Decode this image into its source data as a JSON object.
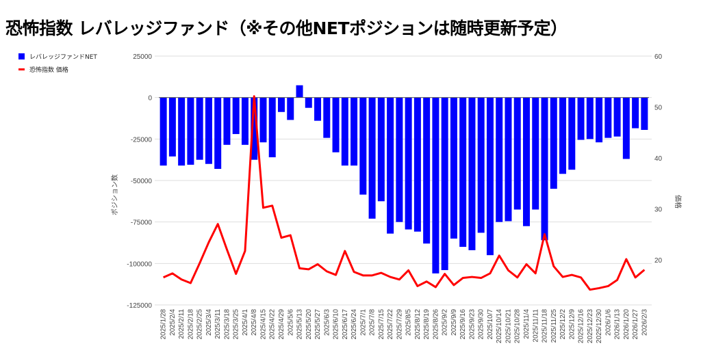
{
  "title": "恐怖指数 レバレッジファンド（※その他NETポジションは随時更新予定）",
  "chart_data": {
    "type": "bar+line",
    "title": "恐怖指数 レバレッジファンド（※その他NETポジションは随時更新予定）",
    "ylabel": "ポジション数",
    "y2label": "価格",
    "ylim": [
      -125000,
      25000
    ],
    "yticks": [
      25000,
      0,
      -25000,
      -50000,
      -75000,
      -100000,
      -125000
    ],
    "y2lim": [
      11.1,
      60
    ],
    "y2ticks": [
      60,
      50,
      40,
      30,
      20
    ],
    "grid": true,
    "legend_position": "top-left",
    "colors": {
      "bar": "#0000ff",
      "line": "#ff0000"
    },
    "categories": [
      "2025/1/28",
      "2025/2/4",
      "2025/2/11",
      "2025/2/18",
      "2025/2/25",
      "2025/3/4",
      "2025/3/11",
      "2025/3/18",
      "2025/3/25",
      "2025/4/1",
      "2025/4/8",
      "2025/4/15",
      "2025/4/22",
      "2025/4/29",
      "2025/5/6",
      "2025/5/13",
      "2025/5/20",
      "2025/5/27",
      "2025/6/3",
      "2025/6/10",
      "2025/6/17",
      "2025/6/24",
      "2025/7/1",
      "2025/7/8",
      "2025/7/15",
      "2025/7/22",
      "2025/7/29",
      "2025/8/5",
      "2025/8/12",
      "2025/8/19",
      "2025/8/26",
      "2025/9/2",
      "2025/9/9",
      "2025/9/16",
      "2025/9/23",
      "2025/9/30",
      "2025/10/7",
      "2025/10/14",
      "2025/10/21",
      "2025/10/28",
      "2025/11/4",
      "2025/11/11",
      "2025/11/18",
      "2025/11/25",
      "2025/12/2",
      "2025/12/9",
      "2025/12/16",
      "2025/12/23",
      "2025/12/30",
      "2026/1/6",
      "2026/1/13",
      "2026/1/20",
      "2026/1/27",
      "2026/2/3"
    ],
    "series": [
      {
        "name": "レバレッジファンドNET",
        "type": "bar",
        "axis": "left",
        "values": [
          -41000,
          -35500,
          -41000,
          -40500,
          -37500,
          -40000,
          -43000,
          -28500,
          -22000,
          -28500,
          -37500,
          -27000,
          -36000,
          -8700,
          -13500,
          7400,
          -6200,
          -14000,
          -24300,
          -33000,
          -41000,
          -41000,
          -58500,
          -73000,
          -62500,
          -82000,
          -75000,
          -79500,
          -80800,
          -88000,
          -106000,
          -104000,
          -85000,
          -90000,
          -92000,
          -81500,
          -95000,
          -75000,
          -74500,
          -67500,
          -77500,
          -67500,
          -86000,
          -55000,
          -46000,
          -43500,
          -25500,
          -25000,
          -27000,
          -24300,
          -23500,
          -37000,
          -18500,
          -19500
        ]
      },
      {
        "name": "恐怖指数 価格",
        "type": "line",
        "axis": "right",
        "values": [
          16.5,
          17.3,
          16.1,
          15.4,
          19.3,
          23.4,
          27.0,
          22.0,
          17.2,
          21.7,
          52.1,
          30.2,
          30.6,
          24.3,
          24.8,
          18.3,
          18.1,
          19.1,
          17.7,
          17.0,
          21.7,
          17.6,
          16.9,
          16.9,
          17.4,
          16.6,
          16.1,
          17.9,
          14.8,
          15.7,
          14.6,
          17.2,
          15.0,
          16.4,
          16.6,
          16.4,
          17.3,
          20.8,
          17.9,
          16.5,
          19.1,
          17.3,
          25.0,
          18.7,
          16.6,
          17.0,
          16.5,
          14.1,
          14.4,
          14.8,
          16.0,
          20.1,
          16.5,
          18.0
        ]
      }
    ]
  }
}
